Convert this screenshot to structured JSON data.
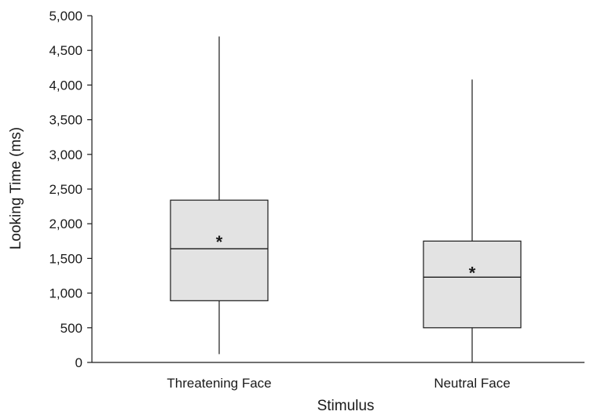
{
  "chart_data": {
    "type": "box",
    "title": "",
    "xlabel": "Stimulus",
    "ylabel": "Looking Time (ms)",
    "ylim": [
      0,
      5000
    ],
    "yticks": [
      0,
      500,
      1000,
      1500,
      2000,
      2500,
      3000,
      3500,
      4000,
      4500,
      5000
    ],
    "ytick_labels": [
      "0",
      "500",
      "1,000",
      "1,500",
      "2,000",
      "2,500",
      "3,000",
      "3,500",
      "4,000",
      "4,500",
      "5,000"
    ],
    "categories": [
      "Threatening Face",
      "Neutral Face"
    ],
    "mean_marker": "*",
    "boxes": [
      {
        "category": "Threatening Face",
        "min": 120,
        "q1": 890,
        "median": 1640,
        "q3": 2340,
        "max": 4700,
        "mean": 1790
      },
      {
        "category": "Neutral Face",
        "min": 0,
        "q1": 500,
        "median": 1230,
        "q3": 1750,
        "max": 4080,
        "mean": 1340
      }
    ],
    "grid": false,
    "colors": {
      "box_fill": "#e3e3e3",
      "stroke": "#1a1a1a"
    }
  }
}
